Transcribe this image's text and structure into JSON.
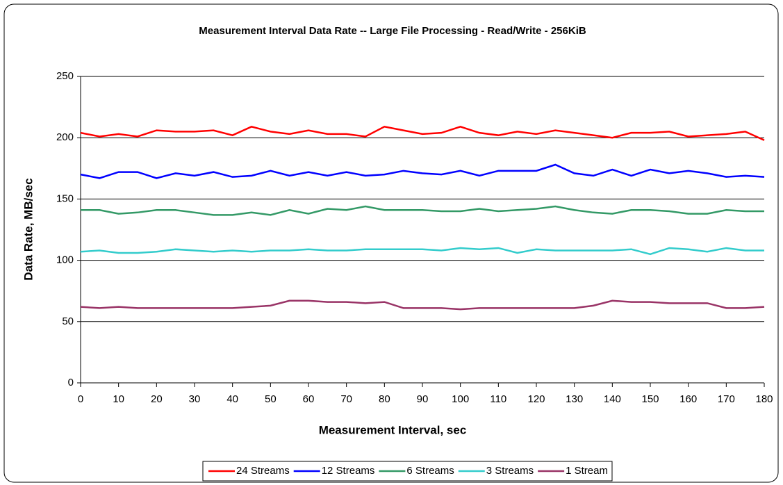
{
  "chart_data": {
    "type": "line",
    "title": "Measurement Interval Data Rate -- Large File Processing - Read/Write - 256KiB",
    "xlabel": "Measurement Interval, sec",
    "ylabel": "Data Rate, MB/sec",
    "x": [
      0,
      5,
      10,
      15,
      20,
      25,
      30,
      35,
      40,
      45,
      50,
      55,
      60,
      65,
      70,
      75,
      80,
      85,
      90,
      95,
      100,
      105,
      110,
      115,
      120,
      125,
      130,
      135,
      140,
      145,
      150,
      155,
      160,
      165,
      170,
      175,
      180
    ],
    "series": [
      {
        "name": "24 Streams",
        "color": "#ff0000",
        "values": [
          204,
          201,
          203,
          201,
          206,
          205,
          205,
          206,
          202,
          209,
          205,
          203,
          206,
          203,
          203,
          201,
          209,
          206,
          203,
          204,
          209,
          204,
          202,
          205,
          203,
          206,
          204,
          202,
          200,
          204,
          204,
          205,
          201,
          202,
          203,
          205,
          198
        ]
      },
      {
        "name": "12 Streams",
        "color": "#0000ff",
        "values": [
          170,
          167,
          172,
          172,
          167,
          171,
          169,
          172,
          168,
          169,
          173,
          169,
          172,
          169,
          172,
          169,
          170,
          173,
          171,
          170,
          173,
          169,
          173,
          173,
          173,
          178,
          171,
          169,
          174,
          169,
          174,
          171,
          173,
          171,
          168,
          169,
          168
        ]
      },
      {
        "name": "6 Streams",
        "color": "#339966",
        "values": [
          141,
          141,
          138,
          139,
          141,
          141,
          139,
          137,
          137,
          139,
          137,
          141,
          138,
          142,
          141,
          144,
          141,
          141,
          141,
          140,
          140,
          142,
          140,
          141,
          142,
          144,
          141,
          139,
          138,
          141,
          141,
          140,
          138,
          138,
          141,
          140,
          140
        ]
      },
      {
        "name": "3 Streams",
        "color": "#33cccc",
        "values": [
          107,
          108,
          106,
          106,
          107,
          109,
          108,
          107,
          108,
          107,
          108,
          108,
          109,
          108,
          108,
          109,
          109,
          109,
          109,
          108,
          110,
          109,
          110,
          106,
          109,
          108,
          108,
          108,
          108,
          109,
          105,
          110,
          109,
          107,
          110,
          108,
          108
        ]
      },
      {
        "name": "1 Stream",
        "color": "#993366",
        "values": [
          62,
          61,
          62,
          61,
          61,
          61,
          61,
          61,
          61,
          62,
          63,
          67,
          67,
          66,
          66,
          65,
          66,
          61,
          61,
          61,
          60,
          61,
          61,
          61,
          61,
          61,
          61,
          63,
          67,
          66,
          66,
          65,
          65,
          65,
          61,
          61,
          62
        ]
      }
    ],
    "xlim": [
      0,
      180
    ],
    "xticks": [
      0,
      10,
      20,
      30,
      40,
      50,
      60,
      70,
      80,
      90,
      100,
      110,
      120,
      130,
      140,
      150,
      160,
      170,
      180
    ],
    "ylim": [
      0,
      250
    ],
    "yticks": [
      0,
      50,
      100,
      150,
      200,
      250
    ],
    "grid": true,
    "legend": "bottom"
  }
}
